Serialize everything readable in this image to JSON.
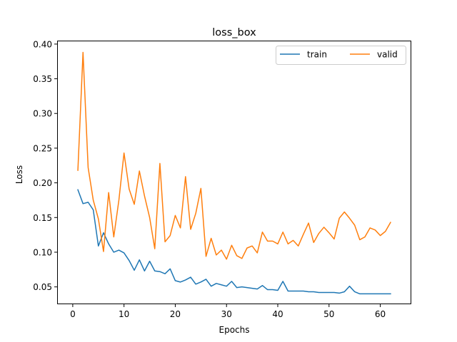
{
  "chart_data": {
    "type": "line",
    "title": "loss_box",
    "xlabel": "Epochs",
    "ylabel": "Loss",
    "xlim": [
      -3.05,
      66.05
    ],
    "ylim": [
      0.025,
      0.405
    ],
    "xticks": [
      0,
      10,
      20,
      30,
      40,
      50,
      60
    ],
    "yticks": [
      0.05,
      0.1,
      0.15,
      0.2,
      0.25,
      0.3,
      0.35,
      0.4
    ],
    "ytick_labels": [
      "0.05",
      "0.10",
      "0.15",
      "0.20",
      "0.25",
      "0.30",
      "0.35",
      "0.40"
    ],
    "grid": false,
    "legend": {
      "position": "top-right",
      "columns": 2
    },
    "x": [
      1,
      2,
      3,
      4,
      5,
      6,
      7,
      8,
      9,
      10,
      11,
      12,
      13,
      14,
      15,
      16,
      17,
      18,
      19,
      20,
      21,
      22,
      23,
      24,
      25,
      26,
      27,
      28,
      29,
      30,
      31,
      32,
      33,
      34,
      35,
      36,
      37,
      38,
      39,
      40,
      41,
      42,
      43,
      44,
      45,
      46,
      47,
      48,
      49,
      50,
      51,
      52,
      53,
      54,
      55,
      56,
      57,
      58,
      59,
      60,
      61,
      62
    ],
    "series": [
      {
        "name": "train",
        "color": "#1f77b4",
        "values": [
          0.19,
          0.17,
          0.172,
          0.161,
          0.109,
          0.128,
          0.112,
          0.1,
          0.103,
          0.099,
          0.088,
          0.074,
          0.089,
          0.073,
          0.087,
          0.073,
          0.072,
          0.069,
          0.076,
          0.059,
          0.057,
          0.06,
          0.064,
          0.054,
          0.057,
          0.061,
          0.051,
          0.055,
          0.053,
          0.051,
          0.058,
          0.049,
          0.05,
          0.049,
          0.048,
          0.047,
          0.052,
          0.046,
          0.046,
          0.045,
          0.058,
          0.044,
          0.044,
          0.044,
          0.044,
          0.043,
          0.043,
          0.042,
          0.042,
          0.042,
          0.042,
          0.041,
          0.043,
          0.051,
          0.043,
          0.04,
          0.04,
          0.04,
          0.04,
          0.04,
          0.04,
          0.04
        ]
      },
      {
        "name": "valid",
        "color": "#ff7f0e",
        "values": [
          0.218,
          0.388,
          0.222,
          0.175,
          0.148,
          0.101,
          0.186,
          0.122,
          0.175,
          0.243,
          0.191,
          0.169,
          0.217,
          0.181,
          0.15,
          0.105,
          0.228,
          0.115,
          0.124,
          0.153,
          0.135,
          0.209,
          0.133,
          0.156,
          0.192,
          0.094,
          0.12,
          0.096,
          0.103,
          0.09,
          0.11,
          0.095,
          0.091,
          0.106,
          0.109,
          0.099,
          0.129,
          0.116,
          0.116,
          0.112,
          0.129,
          0.112,
          0.117,
          0.109,
          0.126,
          0.142,
          0.114,
          0.127,
          0.136,
          0.128,
          0.119,
          0.149,
          0.158,
          0.149,
          0.139,
          0.118,
          0.122,
          0.135,
          0.132,
          0.124,
          0.13,
          0.143
        ]
      }
    ]
  }
}
